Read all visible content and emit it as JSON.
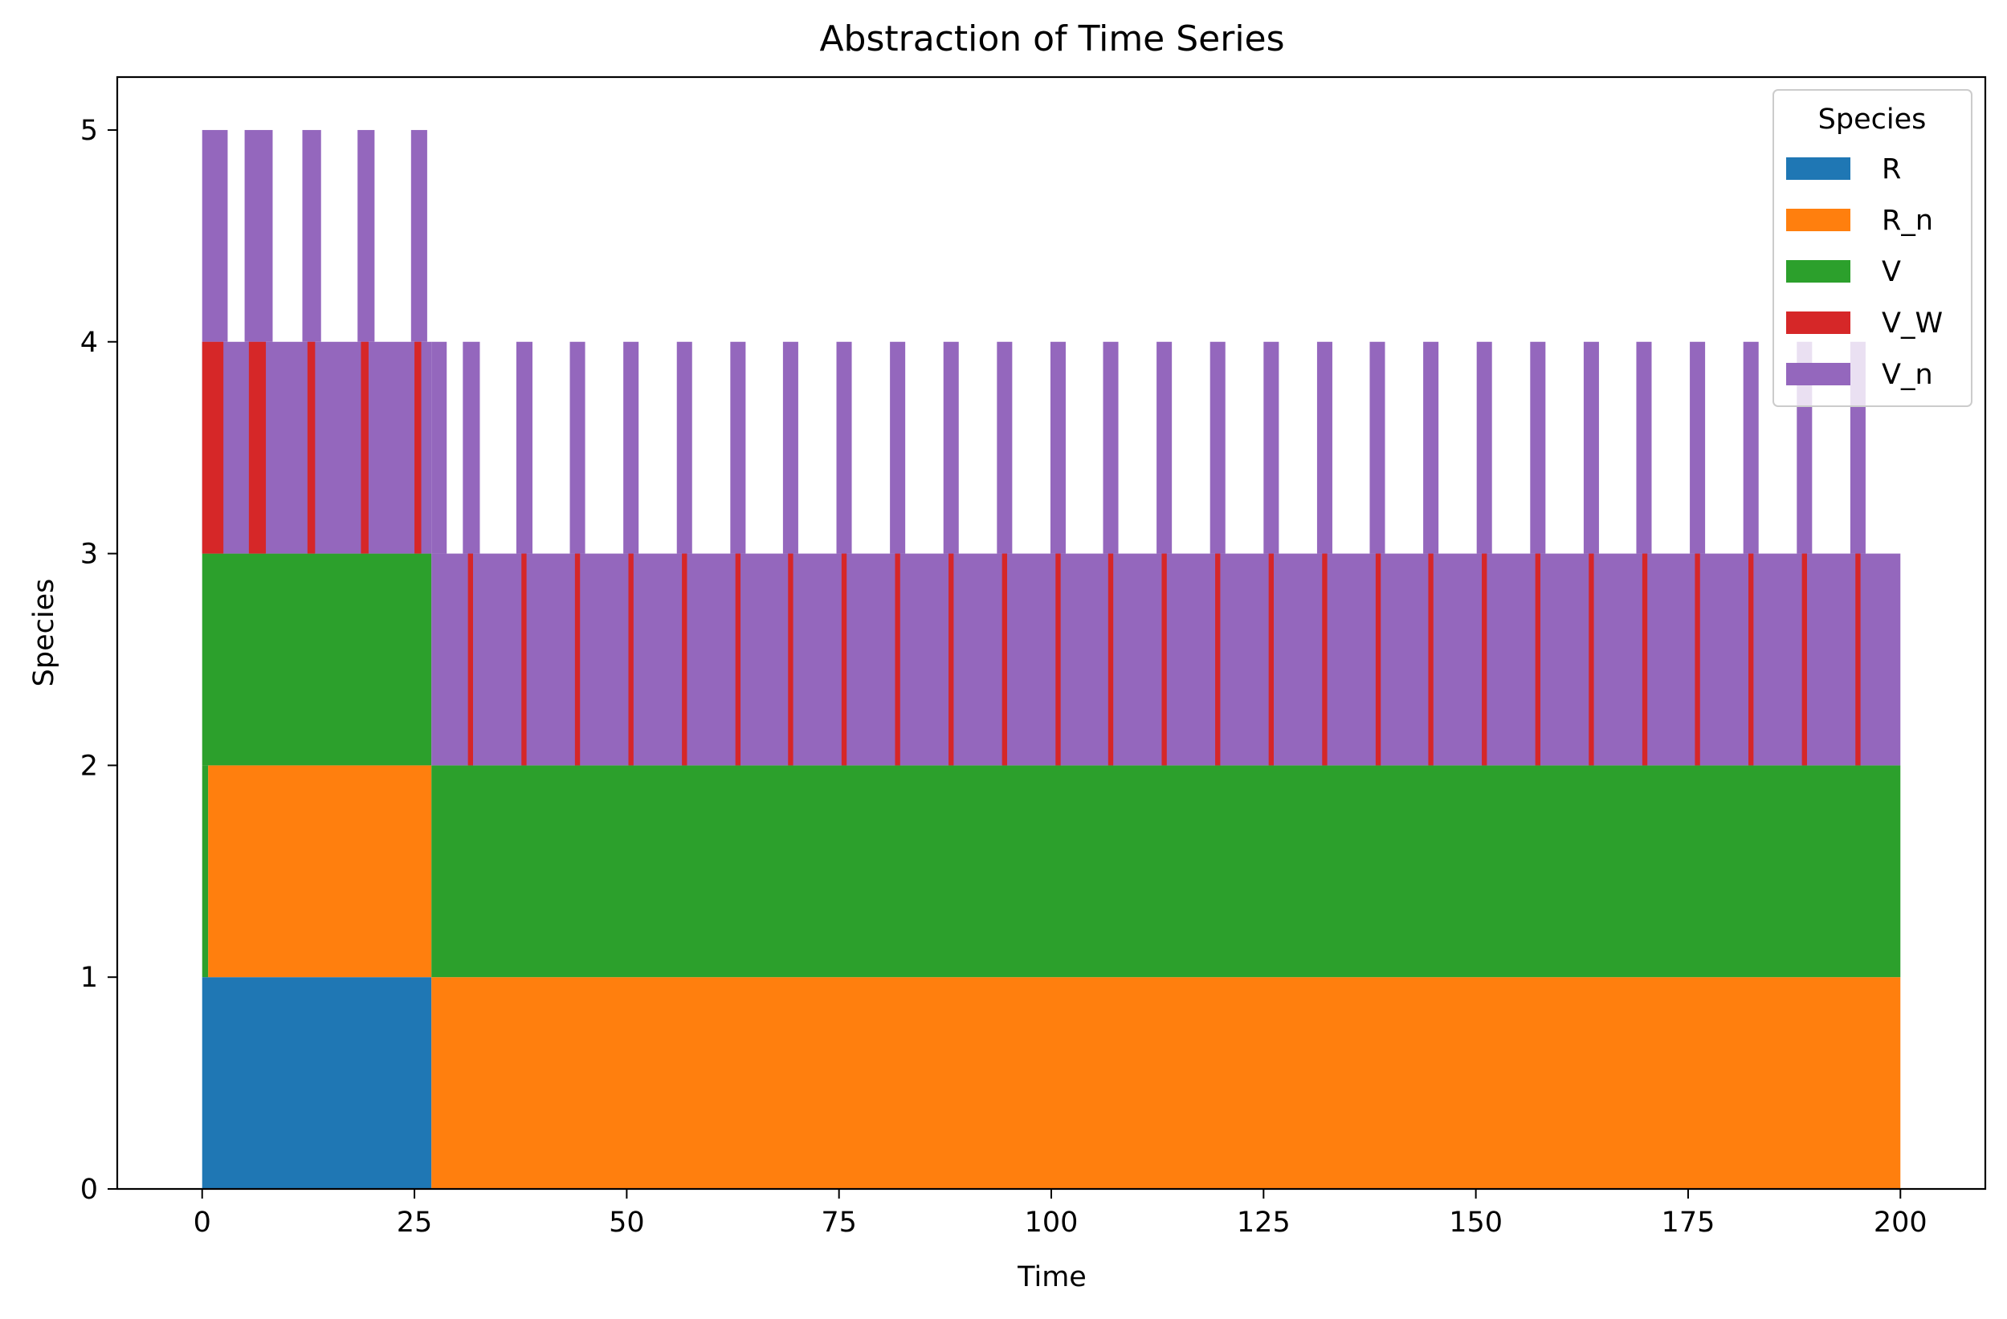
{
  "chart_data": {
    "type": "bar",
    "title": "Abstraction of Time Series",
    "xlabel": "Time",
    "ylabel": "Species",
    "xlim": [
      -10,
      210
    ],
    "ylim": [
      0,
      5.25
    ],
    "xticks": [
      0,
      25,
      50,
      75,
      100,
      125,
      150,
      175,
      200
    ],
    "xtick_labels": [
      "0",
      "25",
      "50",
      "75",
      "100",
      "125",
      "150",
      "175",
      "200"
    ],
    "yticks": [
      0,
      1,
      2,
      3,
      4,
      5
    ],
    "ytick_labels": [
      "0",
      "1",
      "2",
      "3",
      "4",
      "5"
    ],
    "grid": false,
    "legend": {
      "title": "Species",
      "placement": "top-right",
      "entries": [
        {
          "name": "R",
          "color": "#1f77b4"
        },
        {
          "name": "R_n",
          "color": "#ff7f0e"
        },
        {
          "name": "V",
          "color": "#2ca02c"
        },
        {
          "name": "V_W",
          "color": "#d62728"
        },
        {
          "name": "V_n",
          "color": "#9467bd"
        }
      ]
    },
    "series": [
      {
        "name": "R",
        "color": "#1f77b4",
        "segments": [
          [
            0,
            27,
            0,
            1
          ]
        ]
      },
      {
        "name": "R_n",
        "color": "#ff7f0e",
        "segments": [
          [
            0.7,
            27,
            1,
            2
          ],
          [
            27,
            200,
            0,
            1
          ]
        ]
      },
      {
        "name": "V",
        "color": "#2ca02c",
        "segments": [
          [
            0,
            0.7,
            1,
            2
          ],
          [
            0,
            27,
            2,
            3
          ],
          [
            27,
            200,
            1,
            2
          ]
        ]
      },
      {
        "name": "V_n",
        "color": "#9467bd",
        "segments": [
          [
            0,
            3,
            4,
            5
          ],
          [
            5,
            8.3,
            4,
            5
          ],
          [
            11.8,
            14,
            4,
            5
          ],
          [
            18.3,
            20.3,
            4,
            5
          ],
          [
            24.6,
            26.5,
            4,
            5
          ],
          [
            0,
            27,
            3,
            4
          ],
          [
            27,
            28.8,
            3,
            4
          ],
          [
            30.7,
            32.7,
            3,
            4
          ],
          [
            37,
            38.9,
            3,
            4
          ],
          [
            43.3,
            45.1,
            3,
            4
          ],
          [
            49.6,
            51.4,
            3,
            4
          ],
          [
            55.9,
            57.7,
            3,
            4
          ],
          [
            62.2,
            64,
            3,
            4
          ],
          [
            68.4,
            70.2,
            3,
            4
          ],
          [
            74.7,
            76.5,
            3,
            4
          ],
          [
            81,
            82.8,
            3,
            4
          ],
          [
            87.3,
            89.1,
            3,
            4
          ],
          [
            93.6,
            95.4,
            3,
            4
          ],
          [
            99.9,
            101.7,
            3,
            4
          ],
          [
            106.1,
            107.9,
            3,
            4
          ],
          [
            112.4,
            114.2,
            3,
            4
          ],
          [
            118.7,
            120.5,
            3,
            4
          ],
          [
            125,
            126.8,
            3,
            4
          ],
          [
            131.3,
            133.1,
            3,
            4
          ],
          [
            137.5,
            139.3,
            3,
            4
          ],
          [
            143.8,
            145.6,
            3,
            4
          ],
          [
            150.1,
            151.9,
            3,
            4
          ],
          [
            156.4,
            158.2,
            3,
            4
          ],
          [
            162.7,
            164.5,
            3,
            4
          ],
          [
            168.9,
            170.7,
            3,
            4
          ],
          [
            175.2,
            177,
            3,
            4
          ],
          [
            181.5,
            183.3,
            3,
            4
          ],
          [
            187.8,
            189.6,
            3,
            4
          ],
          [
            194.1,
            195.9,
            3,
            4
          ],
          [
            27,
            200,
            2,
            3
          ]
        ]
      },
      {
        "name": "V_W",
        "color": "#d62728",
        "segments": [
          [
            0,
            2.5,
            3,
            4
          ],
          [
            5.5,
            7.5,
            3,
            4
          ],
          [
            12.4,
            13.3,
            3,
            4
          ],
          [
            18.7,
            19.6,
            3,
            4
          ],
          [
            25,
            25.8,
            3,
            4
          ],
          [
            31.3,
            31.9,
            2,
            3
          ],
          [
            37.6,
            38.2,
            2,
            3
          ],
          [
            43.9,
            44.5,
            2,
            3
          ],
          [
            50.2,
            50.8,
            2,
            3
          ],
          [
            56.5,
            57.1,
            2,
            3
          ],
          [
            62.8,
            63.4,
            2,
            3
          ],
          [
            69,
            69.6,
            2,
            3
          ],
          [
            75.3,
            75.9,
            2,
            3
          ],
          [
            81.6,
            82.2,
            2,
            3
          ],
          [
            87.9,
            88.5,
            2,
            3
          ],
          [
            94.2,
            94.8,
            2,
            3
          ],
          [
            100.5,
            101.1,
            2,
            3
          ],
          [
            106.7,
            107.3,
            2,
            3
          ],
          [
            113,
            113.6,
            2,
            3
          ],
          [
            119.3,
            119.9,
            2,
            3
          ],
          [
            125.6,
            126.2,
            2,
            3
          ],
          [
            131.9,
            132.5,
            2,
            3
          ],
          [
            138.2,
            138.8,
            2,
            3
          ],
          [
            144.4,
            145,
            2,
            3
          ],
          [
            150.7,
            151.3,
            2,
            3
          ],
          [
            157,
            157.6,
            2,
            3
          ],
          [
            163.3,
            163.9,
            2,
            3
          ],
          [
            169.6,
            170.2,
            2,
            3
          ],
          [
            175.8,
            176.4,
            2,
            3
          ],
          [
            182.1,
            182.7,
            2,
            3
          ],
          [
            188.4,
            189,
            2,
            3
          ],
          [
            194.7,
            195.3,
            2,
            3
          ]
        ]
      }
    ]
  }
}
